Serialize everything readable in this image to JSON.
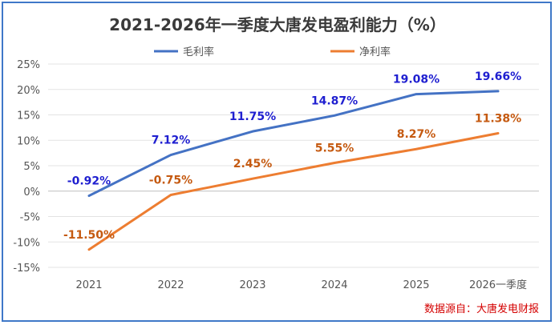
{
  "chart_data": {
    "type": "line",
    "title": "2021-2026年一季度大唐发电盈利能力（%）",
    "categories": [
      "2021",
      "2022",
      "2023",
      "2024",
      "2025",
      "2026一季度"
    ],
    "ylim": [
      -15,
      25
    ],
    "yticks": [
      25,
      20,
      15,
      10,
      5,
      0,
      -5,
      -10,
      -15
    ],
    "ytick_labels": [
      "25%",
      "20%",
      "15%",
      "10%",
      "5%",
      "0%",
      "-5%",
      "-10%",
      "-15%"
    ],
    "grid": true,
    "legend_position": "top",
    "series": [
      {
        "name": "毛利率",
        "color": "#4472c4",
        "label_color": "#1f1fd0",
        "values": [
          -0.92,
          7.12,
          11.75,
          14.87,
          19.08,
          19.66
        ],
        "labels": [
          "-0.92%",
          "7.12%",
          "11.75%",
          "14.87%",
          "19.08%",
          "19.66%"
        ]
      },
      {
        "name": "净利率",
        "color": "#ed7d31",
        "label_color": "#c55a11",
        "values": [
          -11.5,
          -0.75,
          2.45,
          5.55,
          8.27,
          11.38
        ],
        "labels": [
          "-11.50%",
          "-0.75%",
          "2.45%",
          "5.55%",
          "8.27%",
          "11.38%"
        ]
      }
    ],
    "source_note": "数据源自：大唐发电财报"
  }
}
